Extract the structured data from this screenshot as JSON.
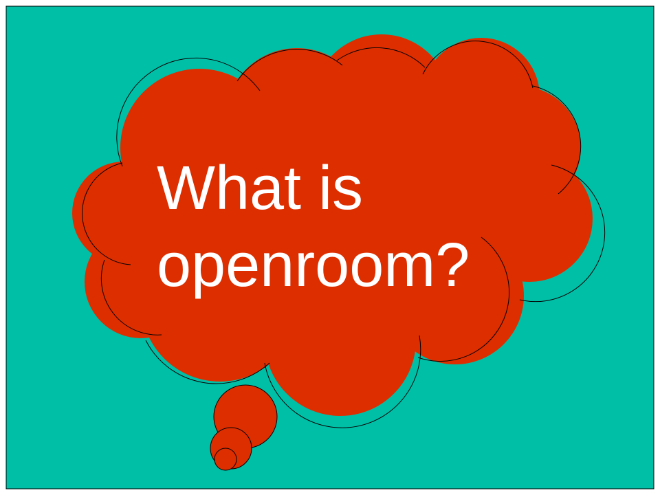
{
  "slide": {
    "title_lines": [
      "What is",
      "openroom?"
    ]
  },
  "colors": {
    "background": "#00bfa7",
    "cloud": "#dd2e00",
    "outline": "#000000",
    "text": "#ffffff"
  },
  "icons": {
    "thought_bubble": "thought-bubble-icon"
  }
}
